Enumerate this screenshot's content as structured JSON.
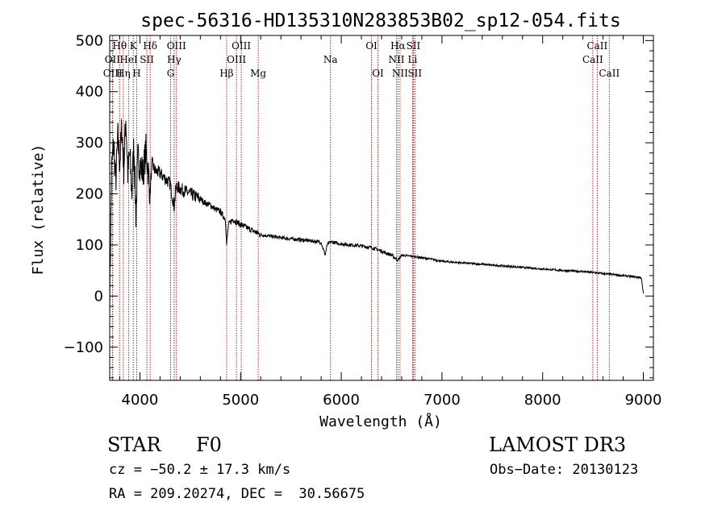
{
  "chart_data": {
    "type": "line",
    "title": "spec-56316-HD135310N283853B02_sp12-054.fits",
    "xlabel": "Wavelength (Å)",
    "ylabel": "Flux (relative)",
    "xlim": [
      3700,
      9100
    ],
    "ylim": [
      -165,
      510
    ],
    "x_ticks": [
      4000,
      5000,
      6000,
      7000,
      8000,
      9000
    ],
    "x_tick_labels": [
      "4000",
      "5000",
      "6000",
      "7000",
      "8000",
      "9000"
    ],
    "y_ticks": [
      -100,
      0,
      100,
      200,
      300,
      400,
      500
    ],
    "y_tick_labels": [
      "−100",
      "0",
      "100",
      "200",
      "300",
      "400",
      "500"
    ],
    "grid": false,
    "line_color": "#000000",
    "marker_color": "#b22222",
    "series": [
      {
        "name": "spectrum",
        "x": [
          3700,
          3720,
          3740,
          3760,
          3780,
          3800,
          3820,
          3840,
          3860,
          3880,
          3900,
          3920,
          3940,
          3960,
          3980,
          4000,
          4030,
          4060,
          4080,
          4101,
          4120,
          4150,
          4200,
          4250,
          4300,
          4340,
          4360,
          4400,
          4450,
          4500,
          4550,
          4600,
          4650,
          4700,
          4750,
          4800,
          4850,
          4861,
          4880,
          4920,
          4960,
          5000,
          5050,
          5100,
          5150,
          5200,
          5300,
          5400,
          5500,
          5600,
          5700,
          5800,
          5840,
          5860,
          5880,
          5900,
          6000,
          6100,
          6200,
          6300,
          6400,
          6500,
          6563,
          6600,
          6700,
          6800,
          6900,
          7000,
          7200,
          7400,
          7600,
          7800,
          8000,
          8200,
          8400,
          8500,
          8600,
          8700,
          8800,
          8900,
          8980,
          9000
        ],
        "y": [
          0,
          250,
          300,
          220,
          310,
          260,
          330,
          250,
          350,
          240,
          280,
          200,
          300,
          160,
          270,
          260,
          240,
          285,
          250,
          200,
          260,
          245,
          240,
          230,
          220,
          175,
          215,
          210,
          205,
          200,
          195,
          190,
          182,
          178,
          170,
          165,
          150,
          100,
          140,
          150,
          145,
          140,
          135,
          130,
          125,
          120,
          117,
          114,
          112,
          110,
          108,
          105,
          80,
          100,
          104,
          106,
          102,
          100,
          98,
          95,
          88,
          80,
          70,
          80,
          78,
          75,
          72,
          68,
          65,
          62,
          59,
          56,
          53,
          50,
          48,
          46,
          44,
          42,
          40,
          38,
          36,
          5
        ]
      }
    ],
    "line_markers": [
      {
        "label": "OII",
        "x": 3727,
        "row": 1
      },
      {
        "label": "OIII",
        "x": 3730,
        "row": 2
      },
      {
        "label": "Hθ",
        "x": 3798,
        "row": 0
      },
      {
        "label": "Hη",
        "x": 3835,
        "row": 2
      },
      {
        "label": "HeI",
        "x": 3889,
        "row": 1
      },
      {
        "label": "K",
        "x": 3934,
        "row": 0
      },
      {
        "label": "SII",
        "x": 4069,
        "row": 1
      },
      {
        "label": "H",
        "x": 3968,
        "row": 2
      },
      {
        "label": "Hδ",
        "x": 4102,
        "row": 0
      },
      {
        "label": "OIII",
        "x": 4363,
        "row": 0
      },
      {
        "label": "Hγ",
        "x": 4340,
        "row": 1
      },
      {
        "label": "G",
        "x": 4305,
        "row": 2
      },
      {
        "label": "Hβ",
        "x": 4861,
        "row": 2
      },
      {
        "label": "OIII",
        "x": 5007,
        "row": 0
      },
      {
        "label": "OIII",
        "x": 4959,
        "row": 1
      },
      {
        "label": "Mg",
        "x": 5175,
        "row": 2
      },
      {
        "label": "Na",
        "x": 5893,
        "row": 1
      },
      {
        "label": "OI",
        "x": 6300,
        "row": 0
      },
      {
        "label": "OI",
        "x": 6364,
        "row": 2
      },
      {
        "label": "Hα",
        "x": 6563,
        "row": 0
      },
      {
        "label": "NII",
        "x": 6548,
        "row": 1
      },
      {
        "label": "NII",
        "x": 6583,
        "row": 2
      },
      {
        "label": "SII",
        "x": 6716,
        "row": 0
      },
      {
        "label": "Li",
        "x": 6708,
        "row": 1
      },
      {
        "label": "SII",
        "x": 6731,
        "row": 2
      },
      {
        "label": "CaII",
        "x": 8542,
        "row": 0
      },
      {
        "label": "CaII",
        "x": 8498,
        "row": 1
      },
      {
        "label": "CaII",
        "x": 8662,
        "row": 2
      }
    ]
  },
  "info": {
    "object_type": "STAR",
    "subclass": "F0",
    "survey": "LAMOST DR3",
    "redshift": "cz = −50.2 ± 17.3 km/s",
    "obs_date": "Obs−Date: 20130123",
    "coords": "RA = 209.20274, DEC =  30.56675"
  }
}
